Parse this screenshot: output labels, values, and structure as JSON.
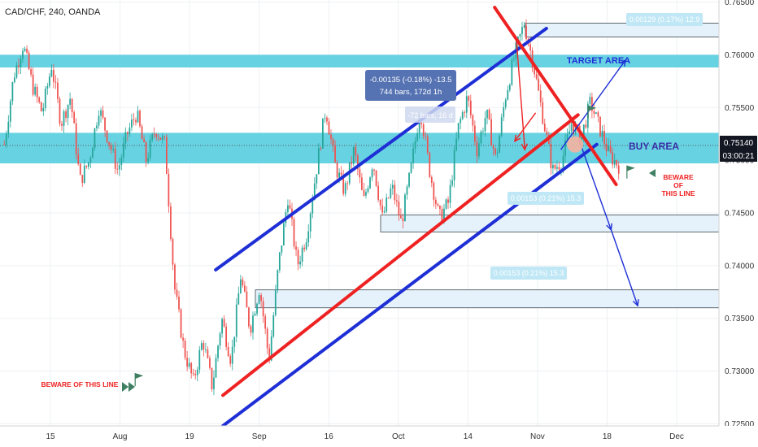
{
  "header": {
    "symbol_label": "CAD/CHF, 240, OANDA"
  },
  "chart_data": {
    "type": "candlestick",
    "title": "CAD/CHF, 240, OANDA",
    "ylim": [
      0.7248,
      0.7652
    ],
    "y_ticks": [
      "0.76500",
      "0.76000",
      "0.75500",
      "0.75000",
      "0.74500",
      "0.74000",
      "0.73500",
      "0.73000",
      "0.72500"
    ],
    "x_ticks": [
      "15",
      "Aug",
      "19",
      "Sep",
      "16",
      "Oct",
      "14",
      "Nov",
      "18",
      "Dec"
    ],
    "current_price": "0.75140",
    "countdown": "03:00:21",
    "price_path": [
      0.7515,
      0.758,
      0.761,
      0.757,
      0.7545,
      0.759,
      0.7535,
      0.756,
      0.748,
      0.75,
      0.755,
      0.752,
      0.749,
      0.7525,
      0.7545,
      0.75,
      0.753,
      0.7515,
      0.738,
      0.732,
      0.729,
      0.733,
      0.7285,
      0.735,
      0.731,
      0.739,
      0.734,
      0.738,
      0.731,
      0.74,
      0.7465,
      0.74,
      0.743,
      0.749,
      0.755,
      0.7495,
      0.747,
      0.751,
      0.746,
      0.75,
      0.7445,
      0.7475,
      0.744,
      0.749,
      0.755,
      0.749,
      0.7445,
      0.746,
      0.753,
      0.756,
      0.751,
      0.7545,
      0.75,
      0.756,
      0.76,
      0.763,
      0.759,
      0.754,
      0.749,
      0.75,
      0.7535,
      0.752,
      0.7555,
      0.753,
      0.7505,
      0.7495
    ],
    "bands": [
      {
        "name": "target-area",
        "kind": "solid",
        "price_top": 0.76,
        "price_bottom": 0.7588
      },
      {
        "name": "buy-area",
        "kind": "solid",
        "price_top": 0.7526,
        "price_bottom": 0.7497
      },
      {
        "name": "range-box-1",
        "kind": "light",
        "price_top": 0.763,
        "price_bottom": 0.7617
      },
      {
        "name": "range-box-2",
        "kind": "light",
        "price_top": 0.7448,
        "price_bottom": 0.7432
      },
      {
        "name": "range-box-3",
        "kind": "light",
        "price_top": 0.7377,
        "price_bottom": 0.736
      }
    ],
    "trendlines": [
      {
        "name": "upper-channel-line",
        "color": "#1e2fd6",
        "start": [
          0.3,
          0.7396
        ],
        "end": [
          0.76,
          0.7625
        ]
      },
      {
        "name": "middle-trend-line",
        "color": "#ee2222",
        "start": [
          0.31,
          0.7277
        ],
        "end": [
          0.804,
          0.7543
        ]
      },
      {
        "name": "lower-channel-line",
        "color": "#1e2fd6",
        "start": [
          0.31,
          0.7248
        ],
        "end": [
          0.83,
          0.7515
        ]
      },
      {
        "name": "descending-resistance-line",
        "color": "#ee2222",
        "start": [
          0.688,
          0.7645
        ],
        "end": [
          0.857,
          0.7477
        ]
      }
    ],
    "projection_arrows": [
      {
        "name": "arrow-to-target",
        "start": [
          0.78,
          0.751
        ],
        "end": [
          0.87,
          0.7595
        ]
      },
      {
        "name": "arrow-down-1",
        "start": [
          0.805,
          0.752
        ],
        "end": [
          0.85,
          0.7434
        ]
      },
      {
        "name": "arrow-down-2",
        "start": [
          0.85,
          0.7434
        ],
        "end": [
          0.887,
          0.7362
        ]
      },
      {
        "name": "arrow-down-3",
        "start": [
          0.745,
          0.7545
        ],
        "end": [
          0.716,
          0.7518
        ]
      },
      {
        "name": "arrow-down-4",
        "start": [
          0.718,
          0.7617
        ],
        "end": [
          0.73,
          0.751
        ]
      }
    ],
    "circle_marker": {
      "at": [
        0.8,
        0.7515
      ]
    },
    "flags": [
      {
        "name": "flag-1",
        "at": [
          0.818,
          0.7552
        ]
      },
      {
        "name": "flag-2",
        "at": [
          0.872,
          0.7495
        ]
      },
      {
        "name": "flag-3",
        "at": [
          0.188,
          0.7298
        ]
      }
    ],
    "annotations": {
      "target_area": "TARGET AREA",
      "buy_area": "BUY AREA",
      "beware_right_1": "BEWARE",
      "beware_right_2": "OF",
      "beware_right_3": "THIS LINE",
      "beware_left": "BEWARE OF THIS LINE",
      "measure_top": "0.00129 (0.17%) 12.9",
      "measure_mid": "0.00153 (0.21%) 15.3",
      "measure_low": "0.00153 (0.21%) 15.3",
      "info_box_line1": "-0.00135 (-0.18%) -13.5",
      "info_box_line2": "744 bars, 172d 1h",
      "info_box_behind": "-72 bars, 16 d"
    }
  }
}
